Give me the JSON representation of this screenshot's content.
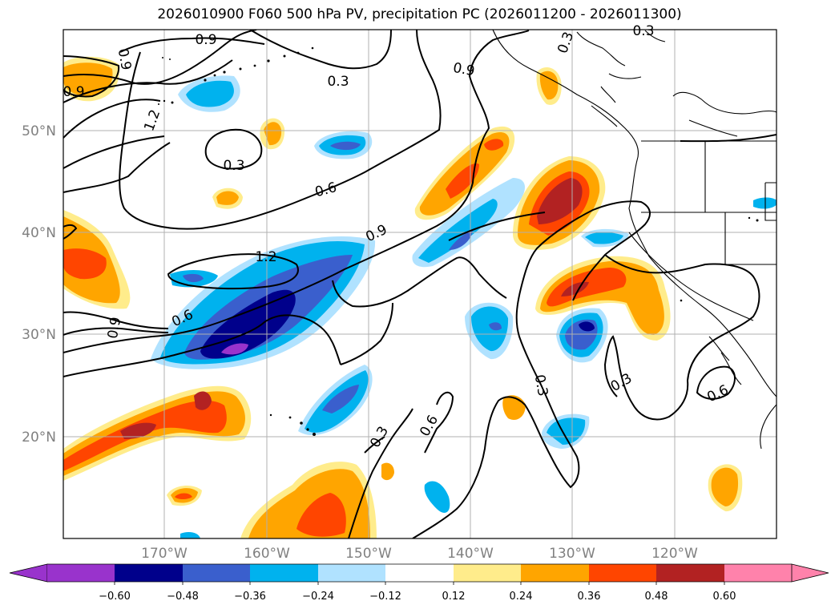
{
  "title": "2026010900 F060 500 hPa PV, precipitation PC (2026011200 - 2026011300)",
  "lat_labels": [
    "50°N",
    "40°N",
    "30°N",
    "20°N"
  ],
  "lon_labels": [
    "170°W",
    "160°W",
    "150°W",
    "140°W",
    "130°W",
    "120°W"
  ],
  "contour_labels": [
    "0.9",
    "0.3",
    "0.3",
    "0.9",
    "0.9",
    "0.9",
    "1.2",
    "0.3",
    "0.6",
    "0.9",
    "1.2",
    "0.6",
    "0.9",
    "0.3",
    "0.3",
    "0.6",
    "0.3",
    "0.6",
    "0.3"
  ],
  "colorbar": {
    "ticks": [
      "−0.60",
      "−0.48",
      "−0.36",
      "−0.24",
      "−0.12",
      "0.12",
      "0.24",
      "0.36",
      "0.48",
      "0.60"
    ],
    "colors": [
      "#9933cc",
      "#00008b",
      "#3a5fcd",
      "#00b2ee",
      "#b0e2ff",
      "#ffffff",
      "#ffec8b",
      "#ffa500",
      "#ff4500",
      "#b22222",
      "#ff82ab"
    ]
  },
  "palette": {
    "neg1": "#b0e2ff",
    "neg2": "#00b2ee",
    "neg3": "#3a5fcd",
    "neg4": "#00008b",
    "neg5": "#9933cc",
    "pos1": "#ffec8b",
    "pos2": "#ffa500",
    "pos3": "#ff4500",
    "pos4": "#b22222",
    "pos5": "#ff82ab"
  }
}
